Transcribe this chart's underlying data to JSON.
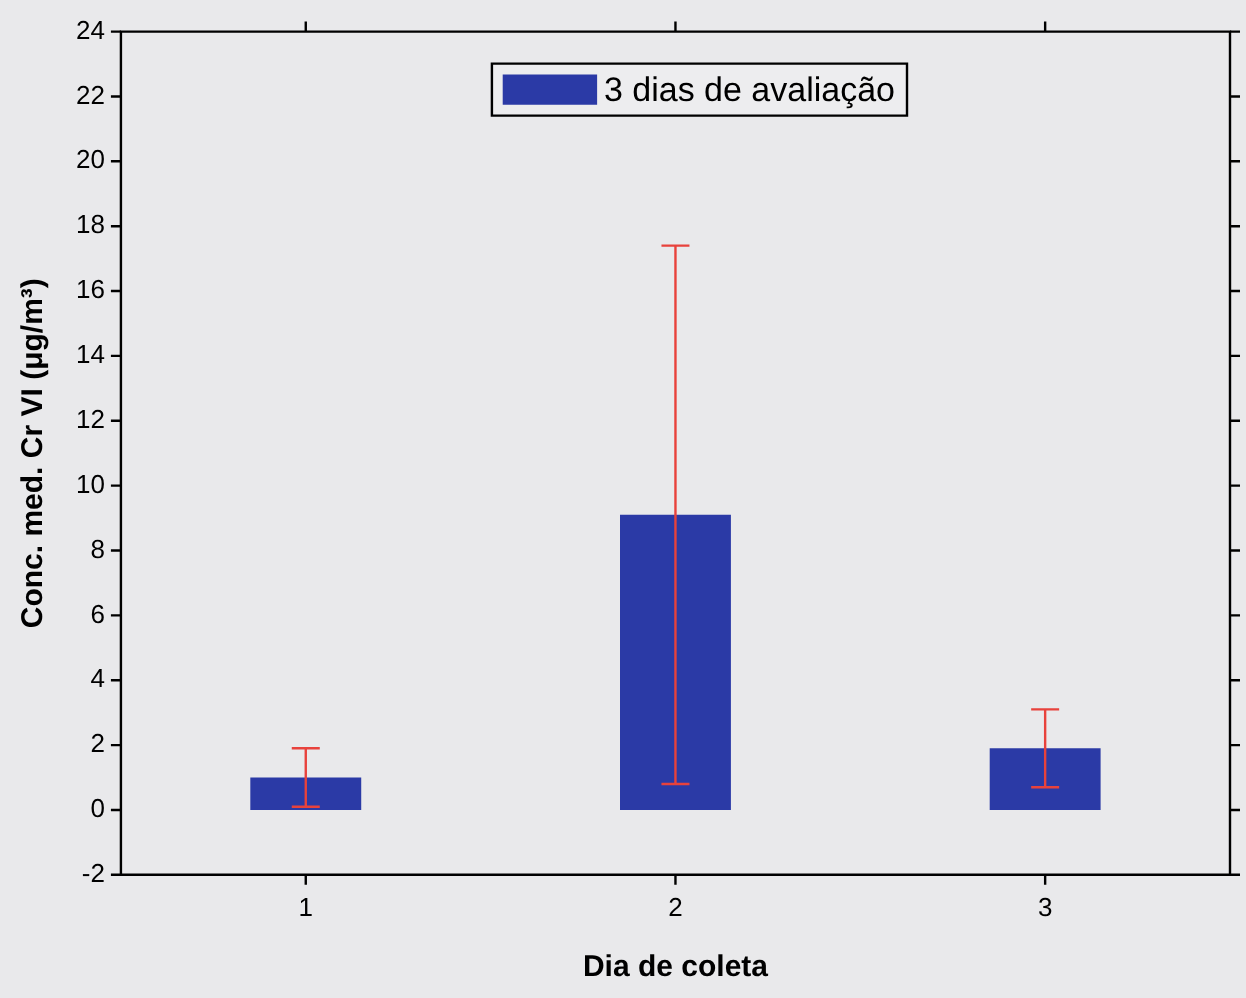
{
  "chart_data": {
    "type": "bar",
    "xlabel": "Dia de coleta",
    "ylabel": "Conc. med. Cr VI (μg/m³)",
    "categories": [
      "1",
      "2",
      "3"
    ],
    "series": [
      {
        "name": "3 dias de avaliação",
        "color": "#2b3aa6",
        "values": [
          1.0,
          9.1,
          1.9
        ],
        "errors": [
          0.9,
          8.3,
          1.2
        ]
      }
    ],
    "ylim": [
      -2,
      24
    ],
    "yticks": [
      -2,
      0,
      2,
      4,
      6,
      8,
      10,
      12,
      14,
      16,
      18,
      20,
      22,
      24
    ],
    "grid": false,
    "legend": "top"
  }
}
